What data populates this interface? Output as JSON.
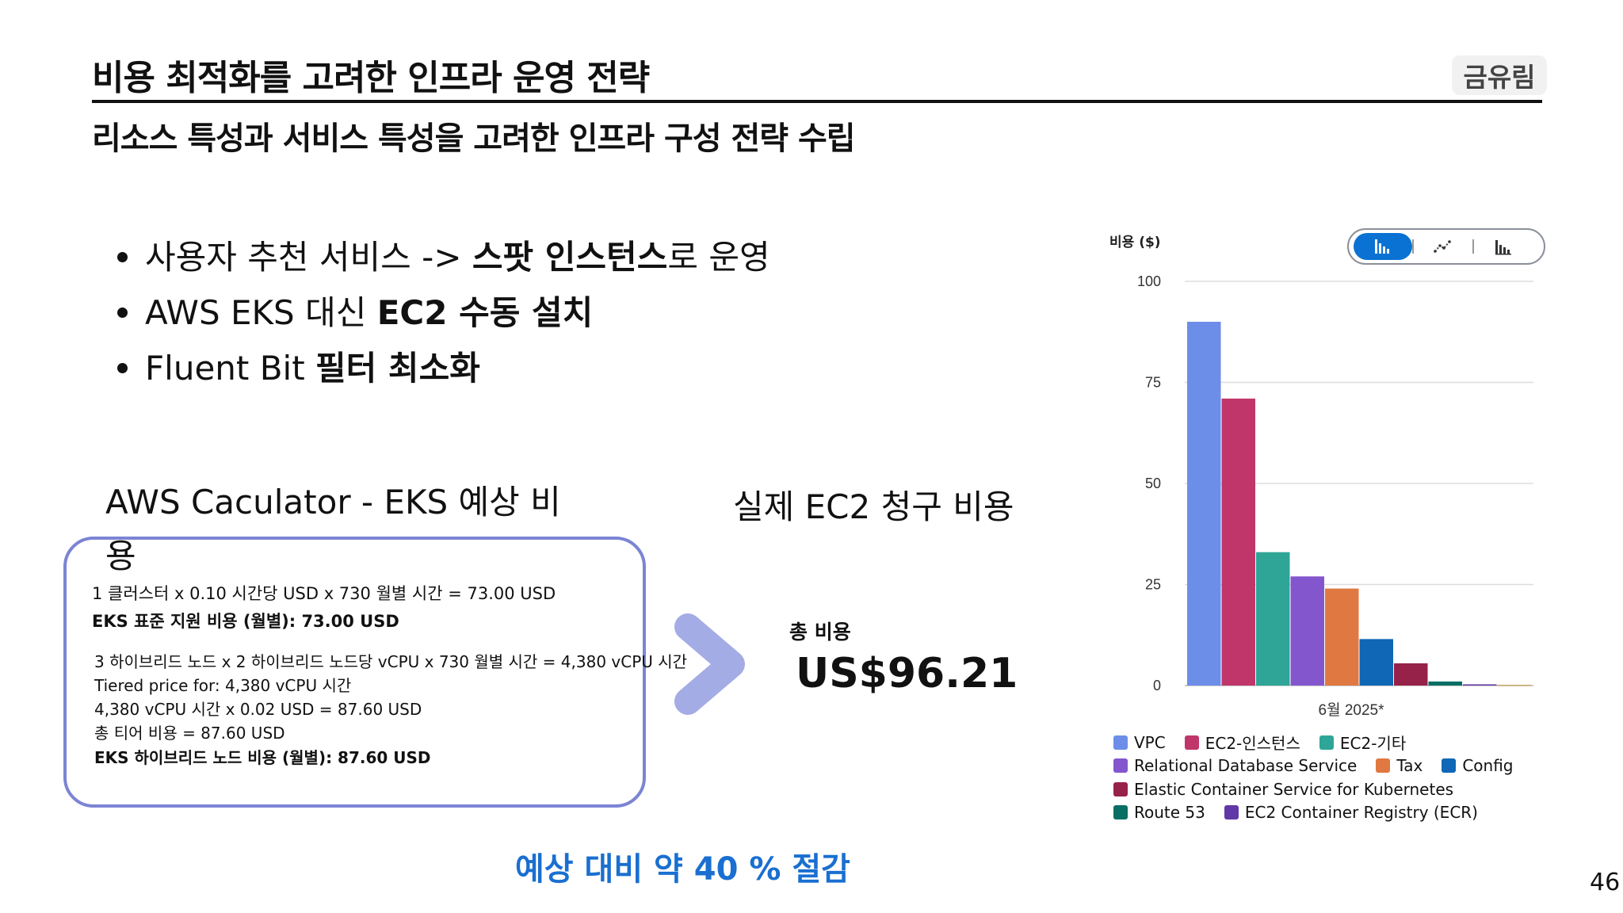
{
  "slide": {
    "title": "비용 최적화를 고려한 인프라 운영 전략",
    "author": "금유림",
    "subtitle": "리소스 특성과 서비스 특성을 고려한 인프라 구성 전략 수립",
    "page_number": "46"
  },
  "bullets": [
    {
      "prefix": "사용자 추천 서비스 -> ",
      "bold": "스팟 인스턴스",
      "suffix": "로 운영"
    },
    {
      "prefix": "AWS EKS 대신 ",
      "bold": "EC2 수동 설치",
      "suffix": ""
    },
    {
      "prefix": "Fluent Bit ",
      "bold": "필터 최소화",
      "suffix": ""
    }
  ],
  "calculator": {
    "heading": "AWS Caculator - EKS 예상 비용",
    "lines": [
      "1 클러스터 x 0.10 시간당 USD x 730 월별 시간 = 73.00 USD",
      "EKS 표준 지원 비용 (월별): 73.00 USD",
      "3 하이브리드 노드 x 2 하이브리드 노드당 vCPU x 730 월별 시간 = 4,380 vCPU 시간",
      "Tiered price for: 4,380 vCPU 시간",
      "4,380 vCPU 시간 x 0.02 USD = 87.60 USD",
      "총 티어 비용 = 87.60 USD",
      "EKS 하이브리드 노드 비용 (월별): 87.60 USD"
    ]
  },
  "actual": {
    "heading": "실제 EC2 청구 비용",
    "total_label": "총 비용",
    "total_value": "US$96.21"
  },
  "savings_text": "예상 대비 약 40 % 절감",
  "chart_toggle": {
    "options": [
      "bar-chart-icon",
      "line-chart-icon",
      "stacked-bar-chart-icon"
    ],
    "selected": "bar-chart-icon"
  },
  "chart_data": {
    "type": "bar",
    "ylabel": "비용 ($)",
    "xlabel": "",
    "categories": [
      "6월 2025*"
    ],
    "ylim": [
      0,
      100
    ],
    "yticks": [
      0,
      25,
      50,
      75,
      100
    ],
    "grid": true,
    "legend_position": "bottom",
    "series": [
      {
        "name": "VPC",
        "values": [
          90
        ],
        "color": "#6c8ee8"
      },
      {
        "name": "EC2-인스턴스",
        "values": [
          71
        ],
        "color": "#c0366a"
      },
      {
        "name": "EC2-기타",
        "values": [
          33
        ],
        "color": "#2ea597"
      },
      {
        "name": "Relational Database Service",
        "values": [
          27
        ],
        "color": "#8456ce"
      },
      {
        "name": "Tax",
        "values": [
          24
        ],
        "color": "#e07941"
      },
      {
        "name": "Config",
        "values": [
          11.5
        ],
        "color": "#0f67b5"
      },
      {
        "name": "Elastic Container Service for Kubernetes",
        "values": [
          5.5
        ],
        "color": "#962249"
      },
      {
        "name": "Route 53",
        "values": [
          1
        ],
        "color": "#096f64"
      },
      {
        "name": "EC2 Container Registry (ECR)",
        "values": [
          0.3
        ],
        "color": "#6237a7"
      },
      {
        "name": "",
        "values": [
          0.2
        ],
        "color": "#c9a86a"
      }
    ]
  }
}
